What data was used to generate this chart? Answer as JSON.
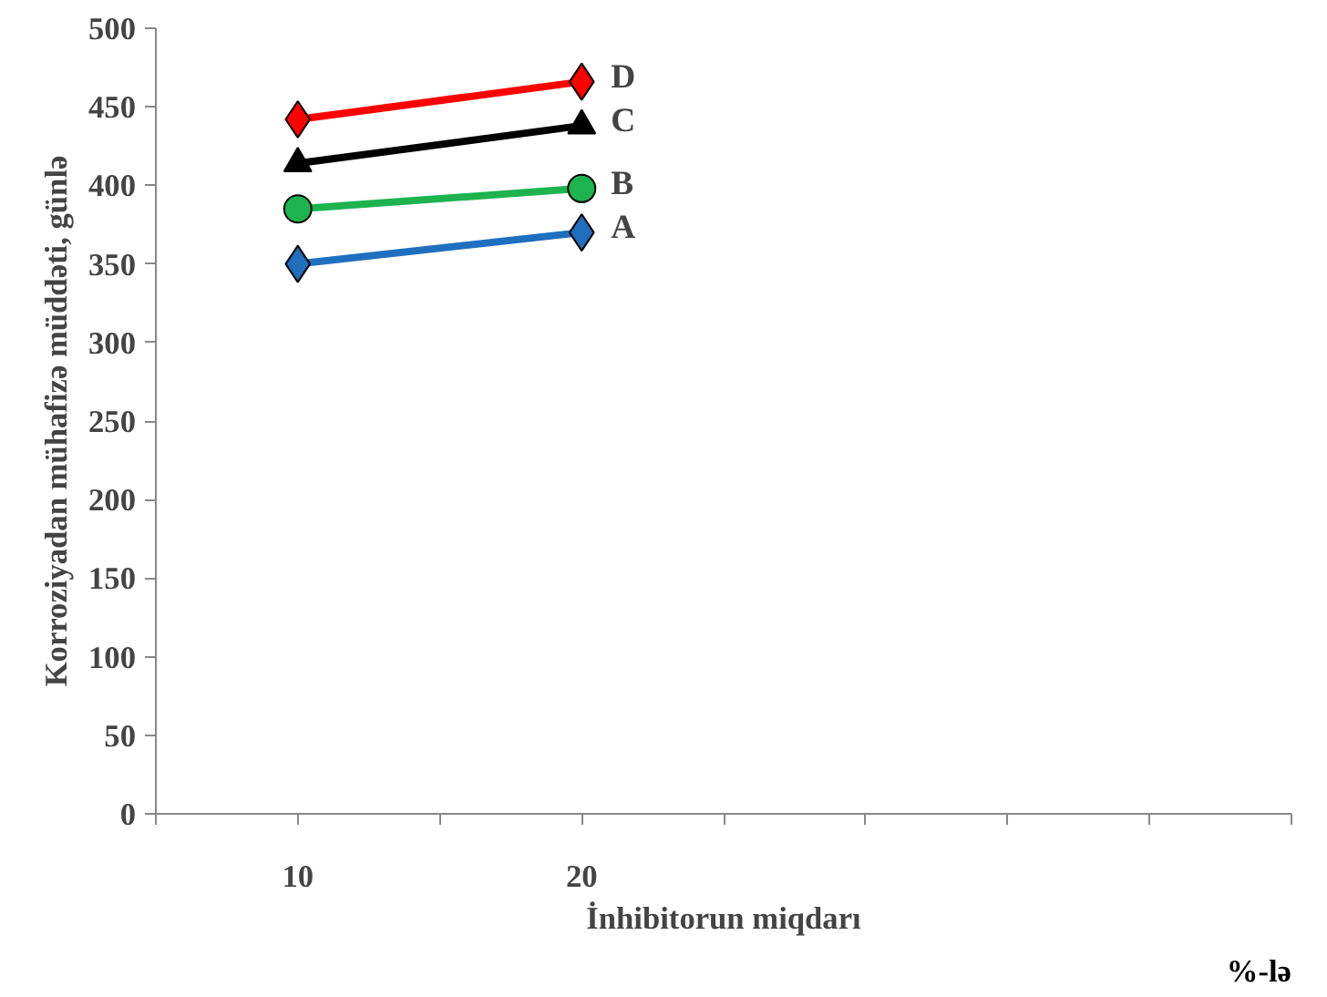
{
  "chart_data": {
    "type": "line",
    "xlabel": "İnhibitorun miqdarı",
    "ylabel": "Korroziyadan mühafizə müddəti, günlə",
    "x": [
      10,
      20
    ],
    "series": [
      {
        "name": "A",
        "color": "#1f6fbf",
        "marker": "diamond",
        "values": [
          350,
          370
        ]
      },
      {
        "name": "B",
        "color": "#1db34f",
        "marker": "circle",
        "values": [
          385,
          398
        ]
      },
      {
        "name": "C",
        "color": "#000000",
        "marker": "triangle",
        "values": [
          414,
          438
        ]
      },
      {
        "name": "D",
        "color": "#ff0000",
        "marker": "diamond",
        "values": [
          442,
          466
        ]
      }
    ],
    "xlim": [
      5,
      45
    ],
    "xticks": [
      {
        "value": 5,
        "label": null
      },
      10,
      {
        "value": 15,
        "label": null
      },
      20,
      {
        "value": 25,
        "label": null
      },
      {
        "value": 30,
        "label": null
      },
      {
        "value": 35,
        "label": null
      },
      {
        "value": 40,
        "label": null
      },
      {
        "value": 45,
        "label": null
      }
    ],
    "ylim": [
      0,
      500
    ],
    "yticks": [
      0,
      50,
      100,
      150,
      200,
      250,
      300,
      350,
      400,
      450,
      500
    ],
    "grid": false,
    "legend": false,
    "annotations": [
      "%-lə"
    ]
  }
}
